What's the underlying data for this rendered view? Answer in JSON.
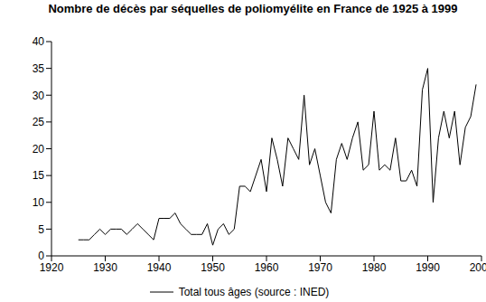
{
  "chart_data": {
    "type": "line",
    "title": "Nombre de décès par séquelles de poliomyélite en France de 1925 à 1999",
    "x": [
      1925,
      1926,
      1927,
      1928,
      1929,
      1930,
      1931,
      1932,
      1933,
      1934,
      1935,
      1936,
      1937,
      1938,
      1939,
      1940,
      1941,
      1942,
      1943,
      1944,
      1945,
      1946,
      1947,
      1948,
      1949,
      1950,
      1951,
      1952,
      1953,
      1954,
      1955,
      1956,
      1957,
      1958,
      1959,
      1960,
      1961,
      1962,
      1963,
      1964,
      1965,
      1966,
      1967,
      1968,
      1969,
      1970,
      1971,
      1972,
      1973,
      1974,
      1975,
      1976,
      1977,
      1978,
      1979,
      1980,
      1981,
      1982,
      1983,
      1984,
      1985,
      1986,
      1987,
      1988,
      1989,
      1990,
      1991,
      1992,
      1993,
      1994,
      1995,
      1996,
      1997,
      1998,
      1999
    ],
    "series": [
      {
        "name": "Total tous âges (source : INED)",
        "color": "#000000",
        "values": [
          3,
          3,
          3,
          4,
          5,
          4,
          5,
          5,
          5,
          4,
          5,
          6,
          5,
          4,
          3,
          7,
          7,
          7,
          8,
          6,
          5,
          4,
          4,
          4,
          6,
          2,
          5,
          6,
          4,
          5,
          13,
          13,
          12,
          15,
          18,
          12,
          22,
          18,
          13,
          22,
          20,
          18,
          30,
          17,
          20,
          15,
          10,
          8,
          18,
          21,
          18,
          22,
          25,
          16,
          17,
          27,
          16,
          17,
          16,
          22,
          14,
          14,
          16,
          13,
          31,
          35,
          10,
          22,
          27,
          22,
          27,
          17,
          24,
          26,
          32
        ]
      }
    ],
    "xlim": [
      1920,
      2000
    ],
    "xticks": [
      1920,
      1930,
      1940,
      1950,
      1960,
      1970,
      1980,
      1990,
      2000
    ],
    "ylim": [
      0,
      40
    ],
    "yticks": [
      0,
      5,
      10,
      15,
      20,
      25,
      30,
      35,
      40
    ],
    "grid": false,
    "legend": "bottom"
  }
}
